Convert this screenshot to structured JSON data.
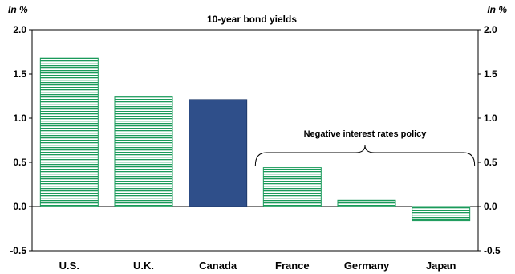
{
  "chart_data": {
    "type": "bar",
    "title": "10-year bond yields",
    "unit_left": "In %",
    "unit_right": "In %",
    "categories": [
      "U.S.",
      "U.K.",
      "Canada",
      "France",
      "Germany",
      "Japan"
    ],
    "values": [
      1.68,
      1.24,
      1.21,
      0.44,
      0.07,
      -0.16
    ],
    "highlight_category": "Canada",
    "ylim": [
      -0.5,
      2.0
    ],
    "yticks": [
      "-0.5",
      "0.0",
      "0.5",
      "1.0",
      "1.5",
      "2.0"
    ],
    "grid": false,
    "annotation": {
      "text": "Negative interest rates policy",
      "applies_to": [
        "France",
        "Germany",
        "Japan"
      ]
    },
    "colors": {
      "hatched": "#1a9a5a",
      "highlight": "#2f4f8a",
      "axis": "#000000"
    }
  }
}
